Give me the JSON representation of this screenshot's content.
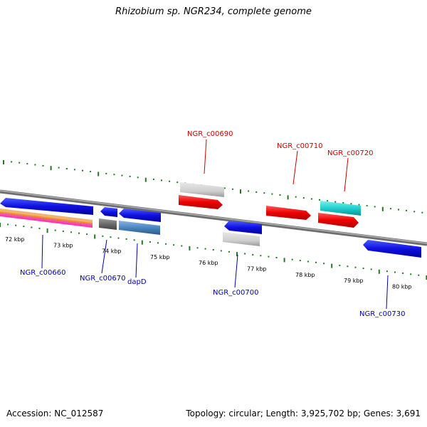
{
  "title": "Rhizobium sp. NGR234, complete genome",
  "footer": {
    "accession": "Accession: NC_012587",
    "summary": "Topology: circular; Length: 3,925,702 bp; Genes: 3,691"
  },
  "colors": {
    "backbone": "#8c8c8c",
    "ruler": "#1f7a1f",
    "forward_label": "#cc0000",
    "reverse_label": "#0000aa",
    "scale_label": "#000000"
  },
  "scale_labels": [
    "72 kbp",
    "73 kbp",
    "74 kbp",
    "75 kbp",
    "76 kbp",
    "77 kbp",
    "78 kbp",
    "79 kbp",
    "80 kbp"
  ],
  "gene_labels": {
    "ngr_c00660": "NGR_c00660",
    "ngr_c00670": "NGR_c00670",
    "dapd": "dapD",
    "ngr_c00690": "NGR_c00690",
    "ngr_c00700": "NGR_c00700",
    "ngr_c00710": "NGR_c00710",
    "ngr_c00720": "NGR_c00720",
    "ngr_c00730": "NGR_c00730"
  }
}
